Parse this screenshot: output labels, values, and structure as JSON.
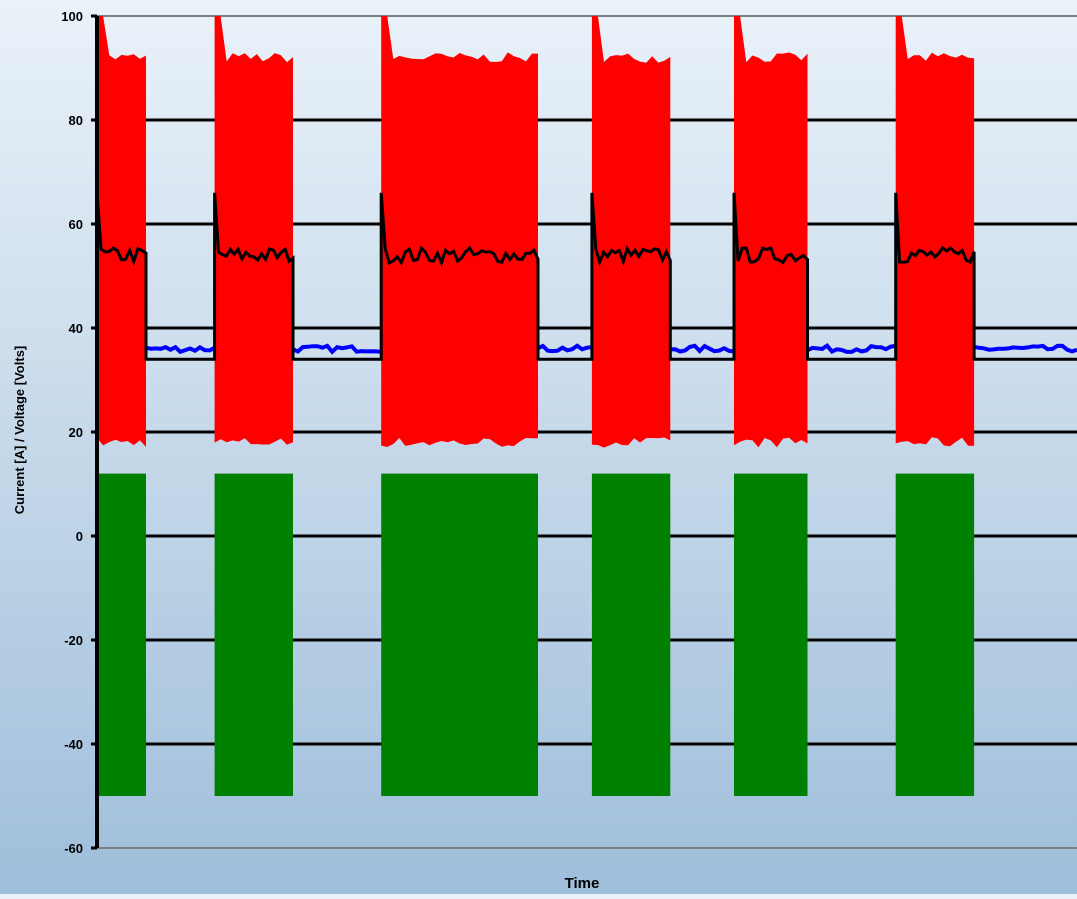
{
  "chart_data": {
    "type": "line",
    "title": "",
    "xlabel": "Time",
    "ylabel": "Current [A] / Voltage [Volts]",
    "ylim": [
      -60,
      100
    ],
    "yticks": [
      -60,
      -40,
      -20,
      0,
      20,
      40,
      60,
      80,
      100
    ],
    "grid": true,
    "legend": "none",
    "x_range": [
      0,
      100
    ],
    "pulses": [
      {
        "start": 0.0,
        "end": 5.0
      },
      {
        "start": 12.0,
        "end": 20.0
      },
      {
        "start": 29.0,
        "end": 45.0
      },
      {
        "start": 50.5,
        "end": 58.5
      },
      {
        "start": 65.0,
        "end": 72.5
      },
      {
        "start": 81.5,
        "end": 89.5
      }
    ],
    "series": [
      {
        "color": "#ff0000",
        "style": "band",
        "description_values": {
          "on_high": 92,
          "on_low": 18,
          "peak": 100
        }
      },
      {
        "color": "#000000",
        "style": "line",
        "description_values": {
          "on_level": 54,
          "off_level": 34,
          "overshoot": 66
        }
      },
      {
        "color": "#0000ff",
        "style": "line",
        "description_values": {
          "off_level": 36
        }
      },
      {
        "color": "#008000",
        "style": "band",
        "description_values": {
          "high": 12,
          "low": -50
        }
      }
    ]
  }
}
